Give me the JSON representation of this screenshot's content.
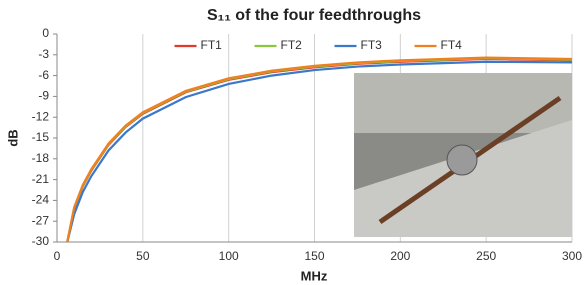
{
  "chart_data": {
    "type": "line",
    "title": "S₁₁ of the four feedthroughs",
    "xlabel": "MHz",
    "ylabel": "dB",
    "x": [
      6,
      8,
      10,
      15,
      20,
      30,
      40,
      50,
      75,
      100,
      125,
      150,
      175,
      200,
      250,
      300
    ],
    "series": [
      {
        "name": "FT1",
        "color": "#e03a2f",
        "values": [
          -30,
          -27.6,
          -25.2,
          -22,
          -19.7,
          -16,
          -13.4,
          -11.5,
          -8.4,
          -6.6,
          -5.5,
          -4.8,
          -4.3,
          -4.0,
          -3.6,
          -3.8
        ]
      },
      {
        "name": "FT2",
        "color": "#8cc63f",
        "values": [
          -30,
          -27.5,
          -25.1,
          -21.9,
          -19.6,
          -15.9,
          -13.3,
          -11.4,
          -8.3,
          -6.5,
          -5.4,
          -4.7,
          -4.2,
          -3.9,
          -3.5,
          -3.7
        ]
      },
      {
        "name": "FT3",
        "color": "#3a78c9",
        "values": [
          -30,
          -28,
          -26,
          -22.8,
          -20.5,
          -16.8,
          -14.2,
          -12.2,
          -9.1,
          -7.2,
          -6.0,
          -5.2,
          -4.7,
          -4.4,
          -4.0,
          -4.1
        ]
      },
      {
        "name": "FT4",
        "color": "#f07f1f",
        "values": [
          -30,
          -27.5,
          -25,
          -21.8,
          -19.5,
          -15.8,
          -13.2,
          -11.3,
          -8.2,
          -6.4,
          -5.3,
          -4.6,
          -4.1,
          -3.8,
          -3.4,
          -3.6
        ]
      }
    ],
    "xlim": [
      0,
      300
    ],
    "xticks": [
      0,
      50,
      100,
      150,
      200,
      250,
      300
    ],
    "ylim": [
      -30,
      0
    ],
    "yticks": [
      0,
      -3,
      -6,
      -9,
      -12,
      -15,
      -18,
      -21,
      -24,
      -27,
      -30
    ],
    "grid": "x",
    "legend": "top"
  }
}
